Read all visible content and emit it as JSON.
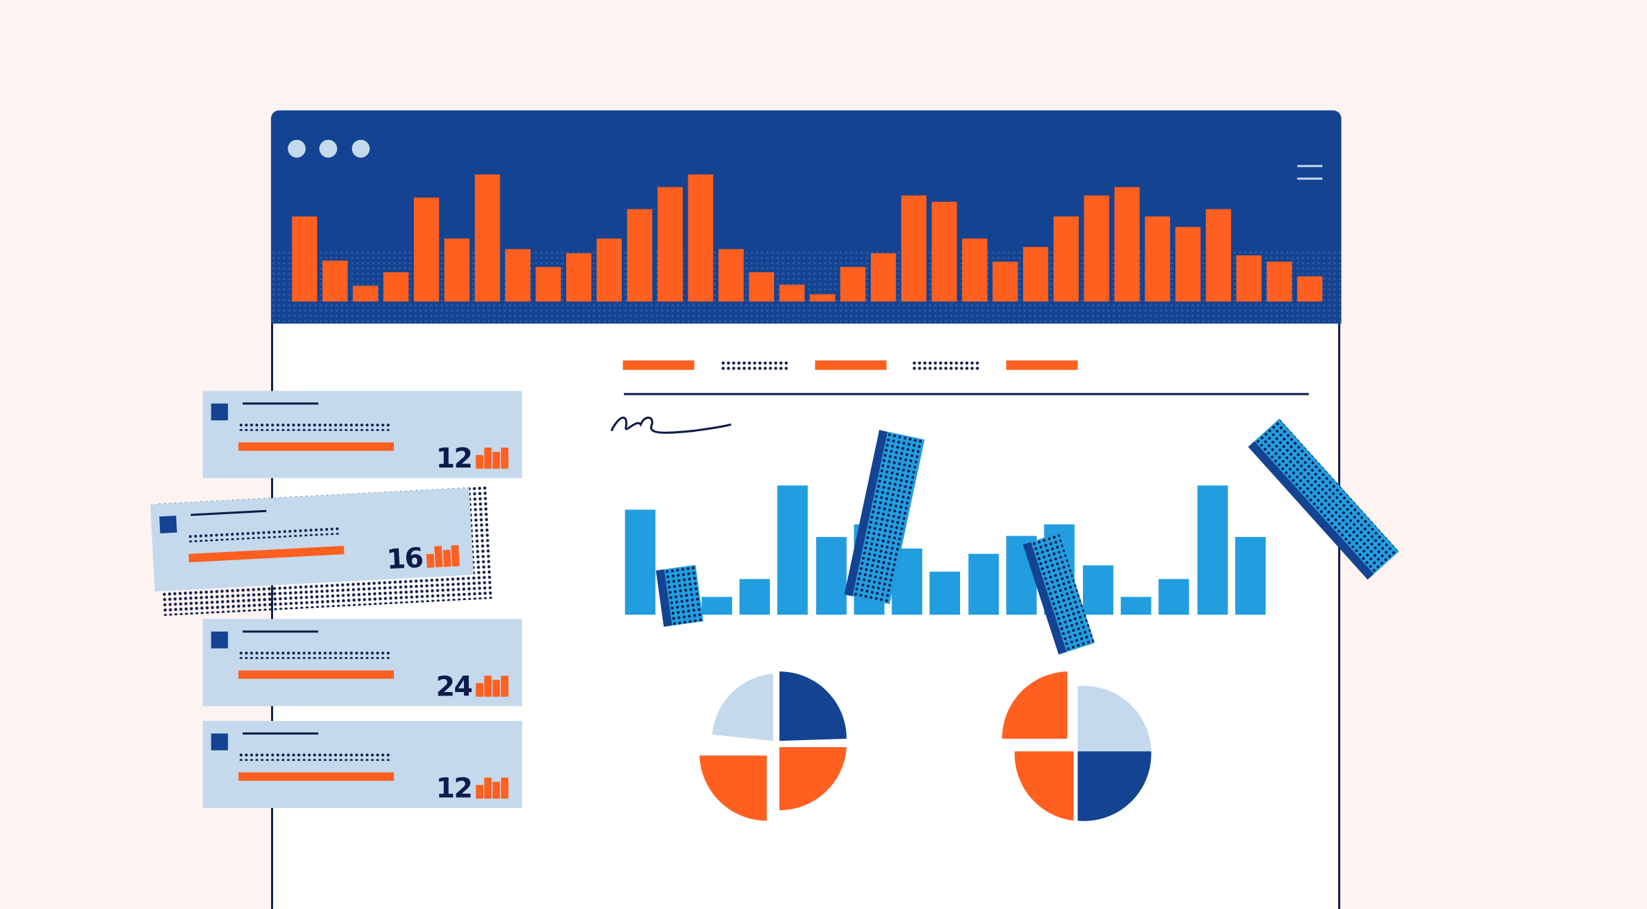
{
  "colors": {
    "background": "#fdf3f1",
    "header": "#134391",
    "accent": "#ff5f1f",
    "bar": "#229ee0",
    "card": "#c4d9ec",
    "ink": "#0d1b4a"
  },
  "window": {
    "controls": [
      "dot",
      "dot",
      "dot"
    ],
    "menu_icon": "hamburger-icon"
  },
  "header_chart": {
    "type": "bar",
    "values": [
      66,
      32,
      12,
      23,
      81,
      49,
      99,
      41,
      27,
      38,
      49,
      72,
      89,
      99,
      41,
      23,
      13,
      6,
      27,
      38,
      83,
      78,
      49,
      31,
      43,
      66,
      83,
      89,
      66,
      58,
      72,
      36,
      31,
      20
    ]
  },
  "tabs": [
    "orange",
    "dots",
    "orange",
    "dots",
    "orange"
  ],
  "main_chart": {
    "type": "bar",
    "values": [
      81,
      33,
      14,
      28,
      100,
      60,
      70,
      51,
      33,
      47,
      61,
      70,
      38,
      14,
      28,
      100,
      60
    ]
  },
  "cards": [
    {
      "value": "12"
    },
    {
      "value": "16"
    },
    {
      "value": "24"
    },
    {
      "value": "12"
    }
  ],
  "pies": [
    {
      "quadrants": [
        "light",
        "dark",
        "orange",
        "orange"
      ]
    },
    {
      "quadrants": [
        "orange",
        "light",
        "orange",
        "dark"
      ]
    }
  ]
}
